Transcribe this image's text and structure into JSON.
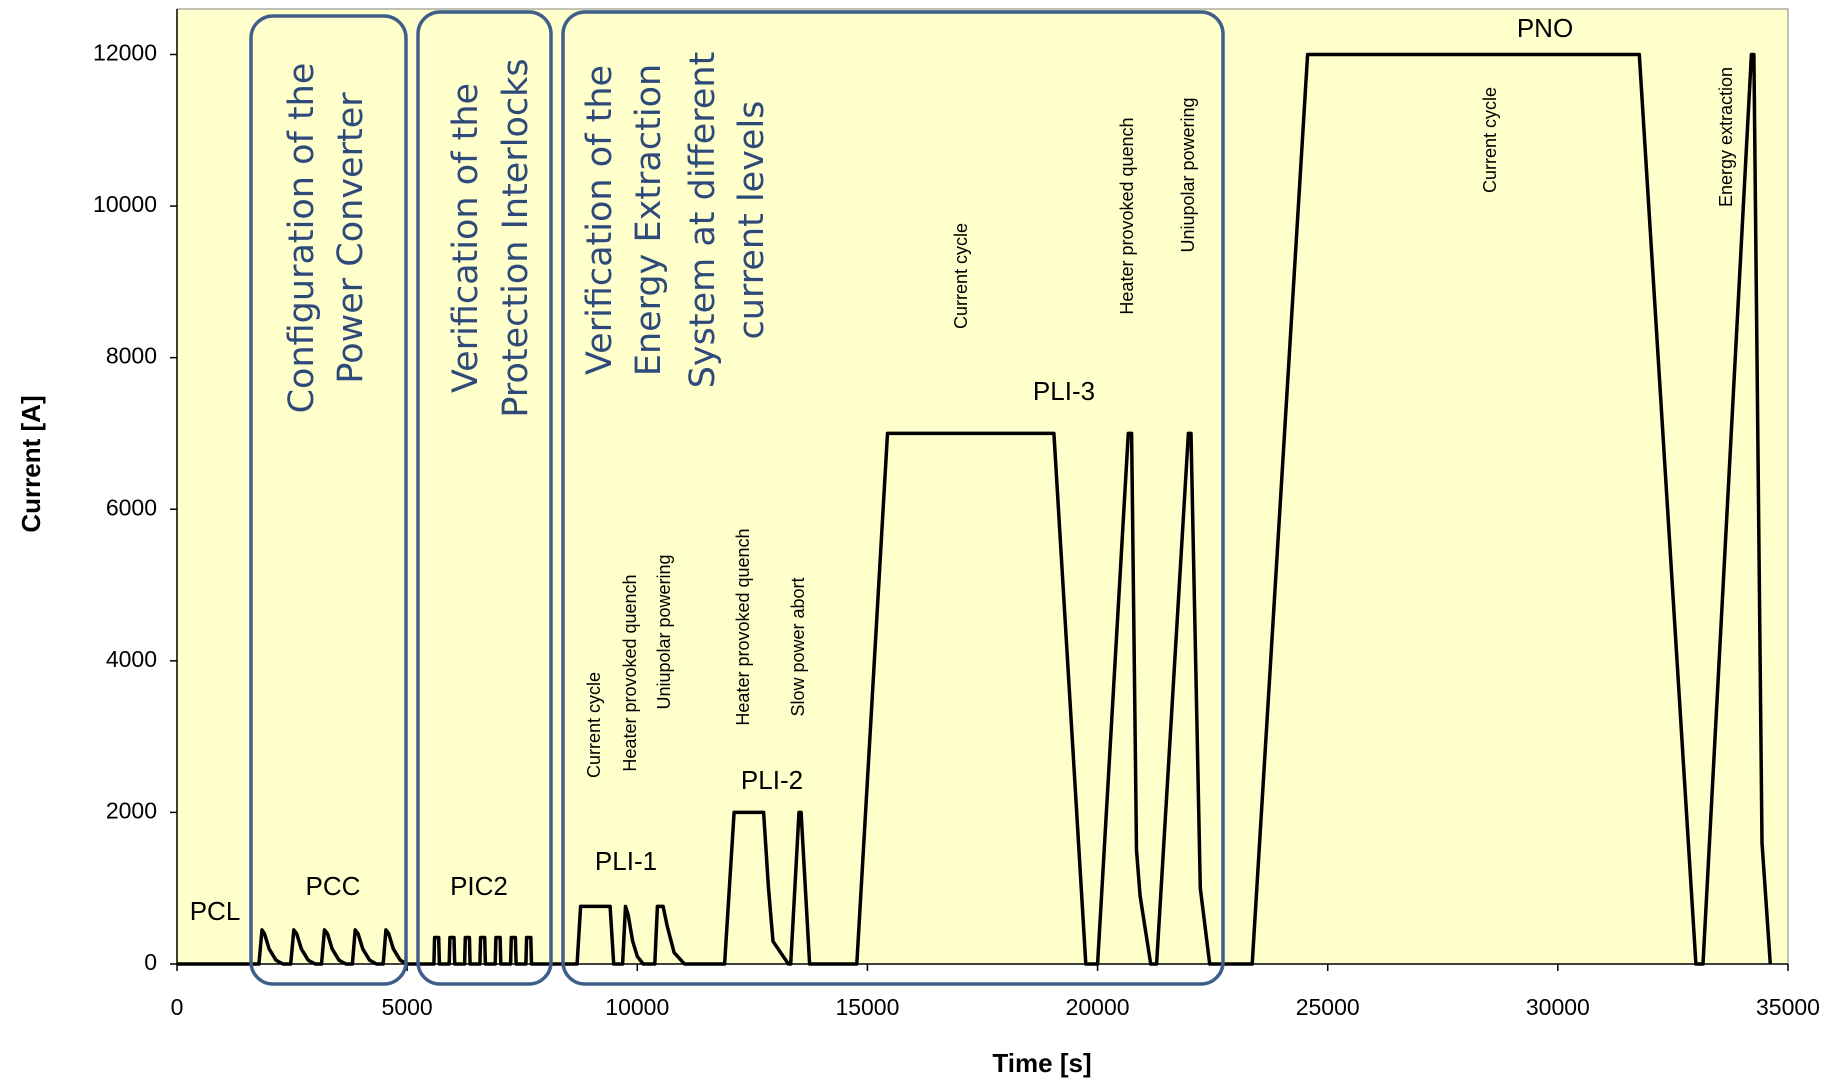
{
  "chart_data": {
    "type": "line",
    "xlabel": "Time [s]",
    "ylabel": "Current [A]",
    "xlim": [
      0,
      35000
    ],
    "ylim": [
      0,
      12600
    ],
    "xticks": [
      0,
      5000,
      10000,
      15000,
      20000,
      25000,
      30000,
      35000
    ],
    "yticks": [
      0,
      2000,
      4000,
      6000,
      8000,
      10000,
      12000
    ],
    "color": "#000000",
    "background": "#ffffcc",
    "x": [
      0,
      1750,
      1780,
      1846,
      1900,
      2000,
      2150,
      2300,
      2470,
      2538,
      2600,
      2700,
      2850,
      3000,
      3140,
      3205,
      3270,
      3370,
      3520,
      3670,
      3810,
      3872,
      3935,
      4035,
      4185,
      4335,
      4480,
      4538,
      4600,
      4700,
      4850,
      5000,
      5581,
      5596,
      5686,
      5701,
      5914,
      5929,
      6019,
      6034,
      6248,
      6263,
      6353,
      6368,
      6581,
      6596,
      6686,
      6701,
      6914,
      6929,
      7019,
      7034,
      7248,
      7263,
      7353,
      7368,
      7581,
      7596,
      7686,
      7701,
      8692,
      8769,
      9410,
      9487,
      9680,
      9744,
      9800,
      9900,
      10000,
      10128,
      10380,
      10436,
      10560,
      10650,
      10800,
      11026,
      11897,
      12103,
      12744,
      12850,
      12949,
      13282,
      13333,
      13513,
      13560,
      13744,
      14769,
      15436,
      19051,
      19744,
      20000,
      20667,
      20740,
      20846,
      20923,
      21154,
      21282,
      21974,
      22030,
      22231,
      22436,
      23359,
      24564,
      31769,
      33000,
      33154,
      34205,
      34260,
      34436,
      34615
    ],
    "values": [
      0,
      0,
      0,
      450,
      400,
      200,
      50,
      0,
      0,
      450,
      400,
      200,
      50,
      0,
      0,
      450,
      400,
      200,
      50,
      0,
      0,
      450,
      400,
      200,
      50,
      0,
      0,
      450,
      400,
      200,
      50,
      0,
      0,
      350,
      350,
      0,
      0,
      350,
      350,
      0,
      0,
      350,
      350,
      0,
      0,
      350,
      350,
      0,
      0,
      350,
      350,
      0,
      0,
      350,
      350,
      0,
      0,
      350,
      350,
      0,
      0,
      760,
      760,
      0,
      0,
      760,
      650,
      300,
      100,
      0,
      0,
      760,
      760,
      500,
      150,
      0,
      0,
      2000,
      2000,
      1000,
      300,
      0,
      0,
      2000,
      2000,
      0,
      0,
      7000,
      7000,
      0,
      0,
      7000,
      7000,
      1500,
      900,
      0,
      0,
      7000,
      7000,
      1000,
      0,
      0,
      12000,
      12000,
      0,
      0,
      12000,
      12000,
      1600,
      0
    ],
    "annotations": [
      {
        "text": "PCL"
      },
      {
        "text": "PCC"
      },
      {
        "text": "PIC2"
      },
      {
        "text": "PLI-1"
      },
      {
        "text": "PLI-2"
      },
      {
        "text": "PLI-3"
      },
      {
        "text": "PNO"
      },
      {
        "text": "Current cycle"
      },
      {
        "text": "Heater provoked quench"
      },
      {
        "text": "Uniupolar powering"
      },
      {
        "text": "Heater provoked quench"
      },
      {
        "text": "Slow power abort"
      },
      {
        "text": "Current cycle"
      },
      {
        "text": "Heater provoked quench"
      },
      {
        "text": "Uniupolar powering"
      },
      {
        "text": "Current cycle"
      },
      {
        "text": "Energy extraction"
      }
    ],
    "boxes": [
      {
        "lines": [
          "Configuration of the",
          "Power Converter"
        ]
      },
      {
        "lines": [
          "Verification of the",
          "Protection Interlocks"
        ]
      },
      {
        "lines": [
          "Verification of the",
          "Energy Extraction",
          "System at different",
          "current levels"
        ]
      }
    ]
  }
}
